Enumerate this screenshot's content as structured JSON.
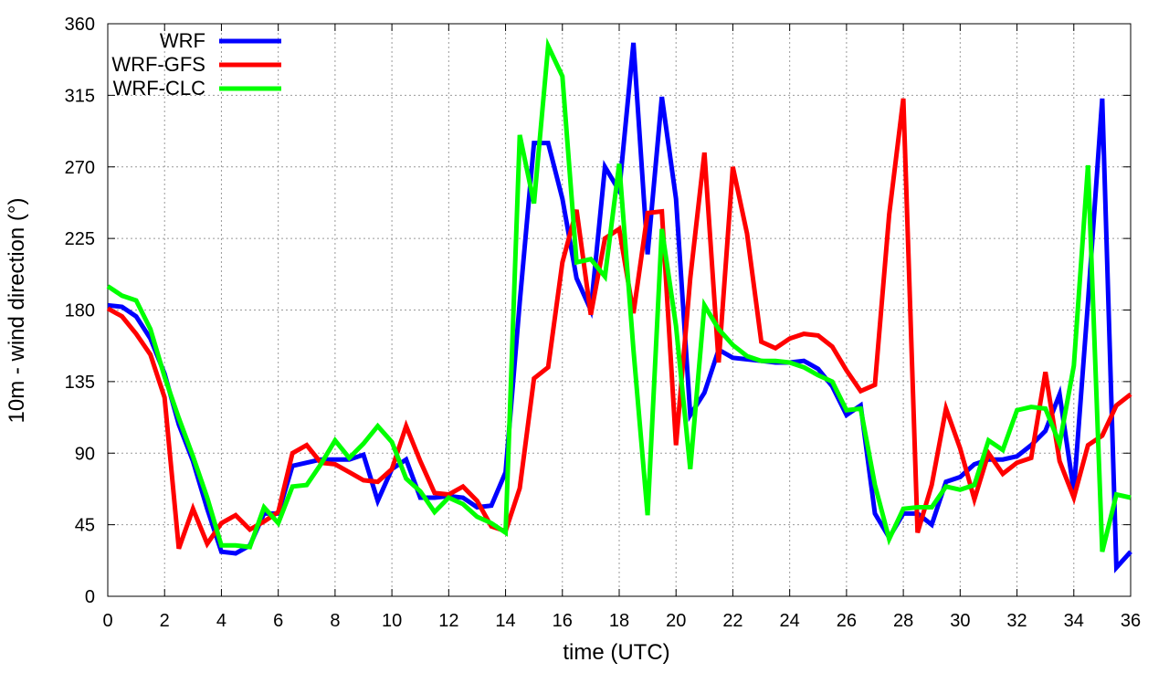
{
  "chart_data": {
    "type": "line",
    "x_label": "time (UTC)",
    "y_label": "10m - wind direction (°)",
    "x": [
      0,
      0.5,
      1,
      1.5,
      2,
      2.5,
      3,
      3.5,
      4,
      4.5,
      5,
      5.5,
      6,
      6.5,
      7,
      7.5,
      8,
      8.5,
      9,
      9.5,
      10,
      10.5,
      11,
      11.5,
      12,
      12.5,
      13,
      13.5,
      14,
      14.5,
      15,
      15.5,
      16,
      16.5,
      17,
      17.5,
      18,
      18.5,
      19,
      19.5,
      20,
      20.5,
      21,
      21.5,
      22,
      22.5,
      23,
      23.5,
      24,
      24.5,
      25,
      25.5,
      26,
      26.5,
      27,
      27.5,
      28,
      28.5,
      29,
      29.5,
      30,
      30.5,
      31,
      31.5,
      32,
      32.5,
      33,
      33.5,
      34,
      34.5,
      35,
      35.5,
      36
    ],
    "series": [
      {
        "name": "WRF",
        "color": "#0000ff",
        "values": [
          183,
          182,
          176,
          162,
          140,
          108,
          85,
          55,
          28,
          27,
          32,
          52,
          52,
          82,
          84,
          86,
          86,
          86,
          89,
          60,
          80,
          86,
          62,
          62,
          63,
          62,
          56,
          57,
          78,
          185,
          285,
          285,
          250,
          200,
          180,
          270,
          255,
          348,
          215,
          314,
          250,
          114,
          128,
          155,
          150,
          149,
          148,
          147,
          147,
          148,
          143,
          132,
          114,
          120,
          52,
          37,
          52,
          52,
          45,
          72,
          75,
          83,
          86,
          86,
          88,
          95,
          104,
          127,
          66,
          185,
          313,
          18,
          28
        ]
      },
      {
        "name": "WRF-GFS",
        "color": "#ff0000",
        "values": [
          181,
          176,
          165,
          152,
          125,
          30,
          55,
          33,
          46,
          51,
          42,
          47,
          53,
          90,
          95,
          84,
          83,
          78,
          73,
          72,
          80,
          107,
          85,
          65,
          64,
          69,
          60,
          44,
          41,
          68,
          137,
          144,
          210,
          243,
          177,
          225,
          231,
          178,
          241,
          242,
          95,
          200,
          279,
          147,
          270,
          228,
          160,
          156,
          162,
          165,
          164,
          157,
          142,
          129,
          133,
          240,
          313,
          40,
          70,
          118,
          93,
          61,
          90,
          77,
          84,
          87,
          141,
          85,
          62,
          95,
          101,
          120,
          127
        ]
      },
      {
        "name": "WRF-CLC",
        "color": "#00ff00",
        "values": [
          195,
          189,
          186,
          168,
          138,
          112,
          88,
          62,
          32,
          32,
          31,
          56,
          46,
          69,
          70,
          83,
          98,
          87,
          96,
          107,
          97,
          74,
          66,
          53,
          62,
          58,
          50,
          46,
          40,
          290,
          247,
          346,
          327,
          210,
          212,
          201,
          272,
          155,
          51,
          231,
          170,
          80,
          183,
          168,
          158,
          151,
          148,
          148,
          147,
          144,
          139,
          135,
          117,
          118,
          70,
          36,
          55,
          56,
          56,
          69,
          67,
          70,
          98,
          92,
          117,
          119,
          118,
          96,
          145,
          271,
          28,
          64,
          62
        ]
      }
    ],
    "xlim": [
      0,
      36
    ],
    "xticks": [
      0,
      2,
      4,
      6,
      8,
      10,
      12,
      14,
      16,
      18,
      20,
      22,
      24,
      26,
      28,
      30,
      32,
      34,
      36
    ],
    "ylim": [
      0,
      360
    ],
    "yticks": [
      0,
      45,
      90,
      135,
      180,
      225,
      270,
      315,
      360
    ],
    "grid": true,
    "legend": "top-left"
  }
}
